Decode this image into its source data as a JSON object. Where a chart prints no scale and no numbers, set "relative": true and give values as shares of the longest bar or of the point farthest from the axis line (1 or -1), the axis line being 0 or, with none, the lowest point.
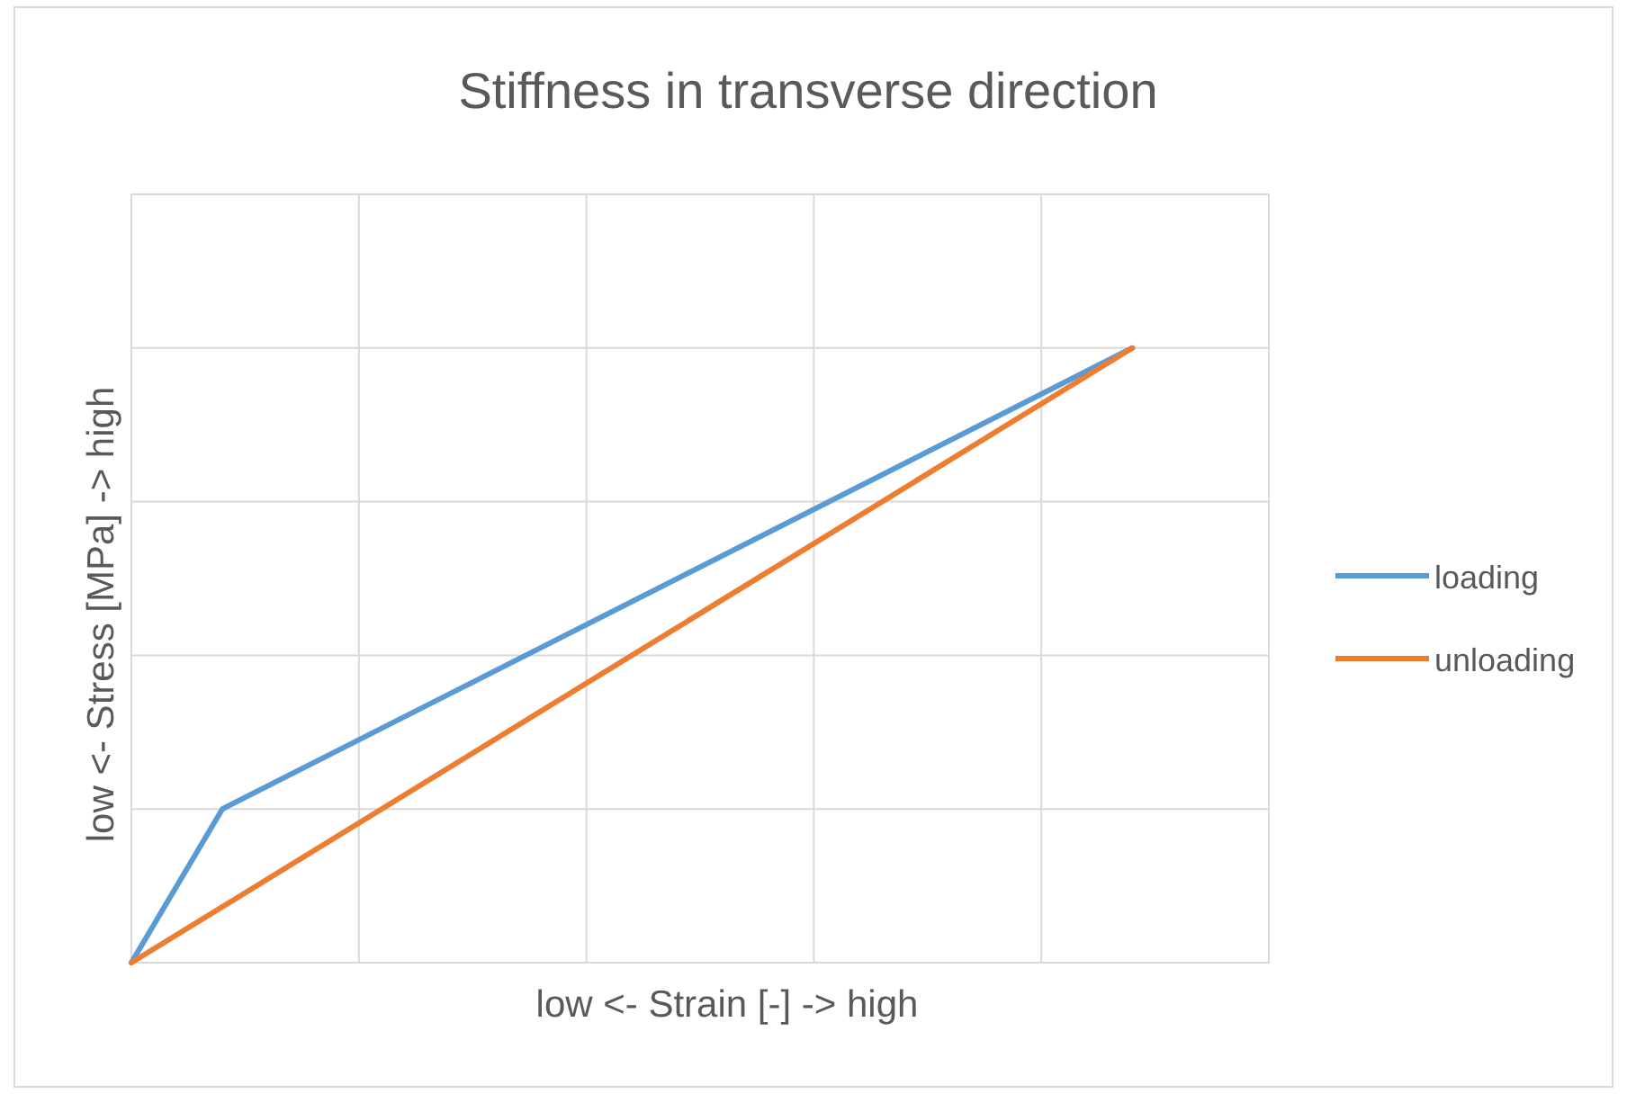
{
  "chart_data": {
    "type": "line",
    "title": "Stiffness in transverse direction",
    "xlabel": "low <- Strain [-] -> high",
    "ylabel": "low <- Stress [MPa] -> high",
    "relative": true,
    "categories": [
      null,
      null,
      null,
      null,
      null,
      null,
      null,
      null,
      null,
      null,
      null,
      null
    ],
    "grid": true,
    "legend": "right",
    "marker": "none",
    "line_style": "solid",
    "series": [
      {
        "name": "loading",
        "color": "#5b9bd5",
        "values": [
          0,
          0.25,
          null,
          null,
          null,
          null,
          null,
          null,
          null,
          null,
          null,
          1
        ]
      },
      {
        "name": "unloading",
        "color": "#ed7d31",
        "values": [
          0,
          null,
          null,
          null,
          null,
          null,
          null,
          null,
          null,
          null,
          null,
          1
        ]
      }
    ]
  }
}
